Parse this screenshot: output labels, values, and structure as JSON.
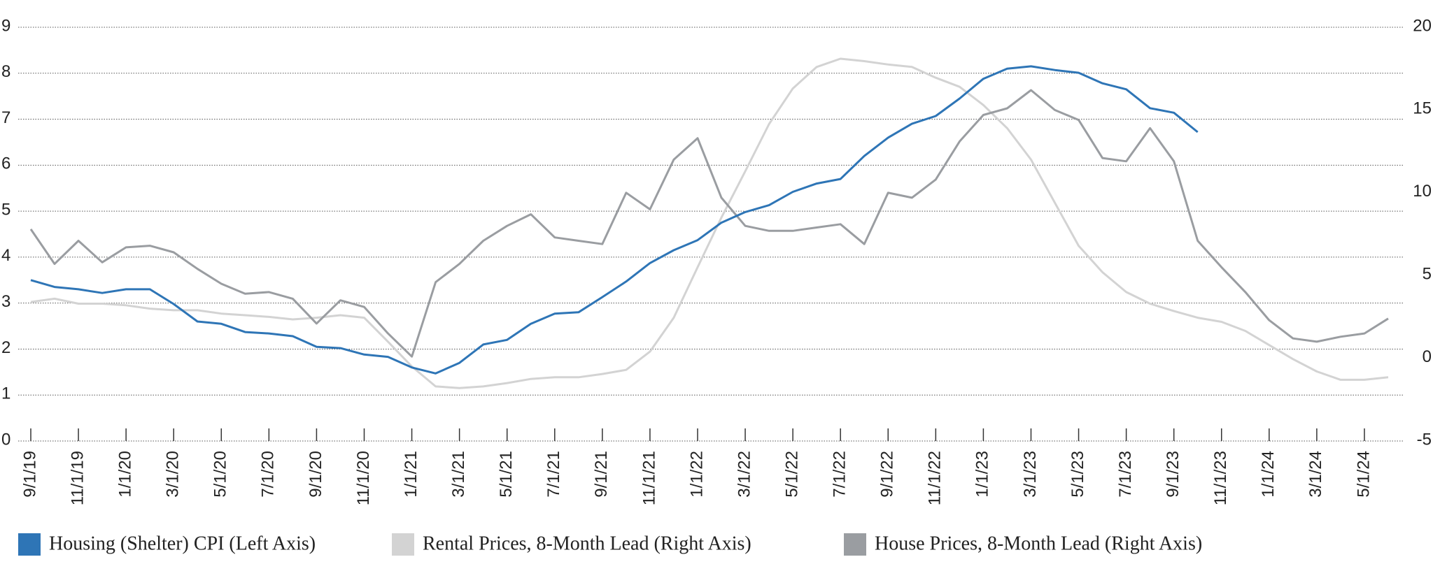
{
  "chart_data": {
    "type": "line",
    "categories": [
      "9/1/19",
      null,
      "11/1/19",
      null,
      "1/1/20",
      null,
      "3/1/20",
      null,
      "5/1/20",
      null,
      "7/1/20",
      null,
      "9/1/20",
      null,
      "11/1/20",
      null,
      "1/1/21",
      null,
      "3/1/21",
      null,
      "5/1/21",
      null,
      "7/1/21",
      null,
      "9/1/21",
      null,
      "11/1/21",
      null,
      "1/1/22",
      null,
      "3/1/22",
      null,
      "5/1/22",
      null,
      "7/1/22",
      null,
      "9/1/22",
      null,
      "11/1/22",
      null,
      "1/1/23",
      null,
      "3/1/23",
      null,
      "5/1/23",
      null,
      "7/1/23",
      null,
      "9/1/23",
      null,
      "11/1/23",
      null,
      "1/1/24",
      null,
      "3/1/24",
      null,
      "5/1/24",
      null
    ],
    "series": [
      {
        "name": "Housing (Shelter) CPI (Left Axis)",
        "color": "#2e75b6",
        "axis": "y",
        "values": [
          3.5,
          3.35,
          3.3,
          3.22,
          3.3,
          3.3,
          2.98,
          2.6,
          2.55,
          2.37,
          2.34,
          2.28,
          2.05,
          2.02,
          1.88,
          1.83,
          1.6,
          1.47,
          1.7,
          2.1,
          2.2,
          2.55,
          2.77,
          2.8,
          3.13,
          3.47,
          3.87,
          4.15,
          4.37,
          4.75,
          4.98,
          5.13,
          5.42,
          5.6,
          5.7,
          6.2,
          6.6,
          6.9,
          7.07,
          7.45,
          7.88,
          8.1,
          8.15,
          8.07,
          8.01,
          7.78,
          7.65,
          7.24,
          7.14,
          6.72,
          null,
          null,
          null,
          null,
          null,
          null,
          null,
          null
        ]
      },
      {
        "name": "Rental Prices, 8-Month Lead (Right Axis)",
        "color": "#d3d3d3",
        "axis": "y2",
        "values": [
          3.4,
          3.6,
          3.3,
          3.3,
          3.2,
          3.0,
          2.9,
          2.9,
          2.7,
          2.6,
          2.5,
          2.35,
          2.45,
          2.6,
          2.45,
          1.0,
          -0.5,
          -1.7,
          -1.8,
          -1.7,
          -1.5,
          -1.25,
          -1.15,
          -1.15,
          -0.95,
          -0.7,
          0.4,
          2.45,
          5.5,
          8.5,
          11.3,
          14.15,
          16.3,
          17.6,
          18.1,
          17.95,
          17.75,
          17.6,
          16.95,
          16.4,
          15.3,
          13.9,
          12.0,
          9.4,
          6.8,
          5.2,
          4.0,
          3.3,
          2.85,
          2.45,
          2.2,
          1.65,
          0.8,
          -0.05,
          -0.8,
          -1.3,
          -1.3,
          -1.15
        ]
      },
      {
        "name": "House Prices, 8-Month Lead (Right Axis)",
        "color": "#9a9da1",
        "axis": "y2",
        "values": [
          7.8,
          5.7,
          7.1,
          5.8,
          6.7,
          6.8,
          6.4,
          5.4,
          4.5,
          3.9,
          4.0,
          3.6,
          2.1,
          3.5,
          3.1,
          1.5,
          0.1,
          4.6,
          5.7,
          7.1,
          8.0,
          8.7,
          7.3,
          7.1,
          6.9,
          10.0,
          9.0,
          12.0,
          13.3,
          9.7,
          8.0,
          7.7,
          7.7,
          7.9,
          8.1,
          6.9,
          10.0,
          9.7,
          10.8,
          13.1,
          14.7,
          15.1,
          16.2,
          15.0,
          14.4,
          12.1,
          11.9,
          13.9,
          11.9,
          7.1,
          5.5,
          4.0,
          2.3,
          1.2,
          1.0,
          1.3,
          1.5,
          2.4
        ]
      }
    ],
    "ylim": [
      0,
      9
    ],
    "yticks": [
      0,
      1,
      2,
      3,
      4,
      5,
      6,
      7,
      8,
      9
    ],
    "y2lim": [
      -5,
      20
    ],
    "y2ticks": [
      -5,
      0,
      5,
      10,
      15,
      20
    ],
    "grid": true,
    "legend": "bottom"
  }
}
